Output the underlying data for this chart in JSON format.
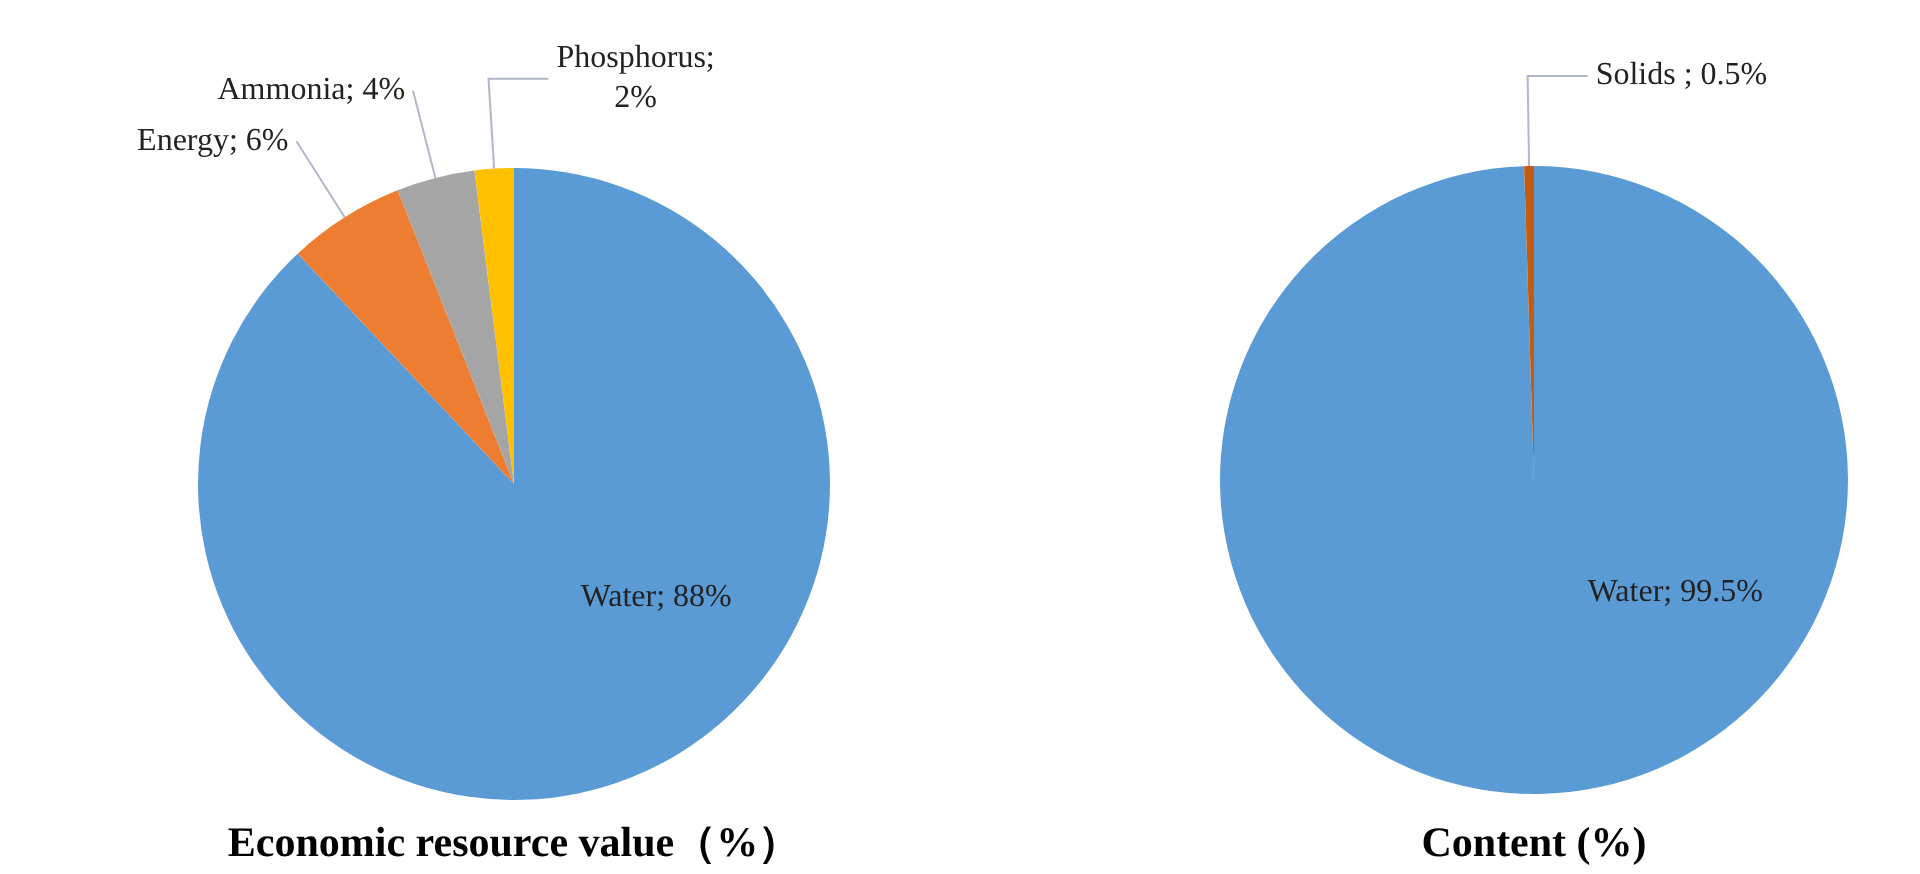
{
  "chart_data": [
    {
      "type": "pie",
      "title": "Economic resource value（%）",
      "categories": [
        "Water",
        "Energy",
        "Ammonia",
        "Phosphorus"
      ],
      "values": [
        88,
        6,
        4,
        2
      ],
      "colors": [
        "#5b9bd5",
        "#ed7d31",
        "#a5a5a5",
        "#ffc000"
      ],
      "value_labels": [
        "; 88%",
        "; 6%",
        "; 4%",
        "; 2%"
      ]
    },
    {
      "type": "pie",
      "title": "Content (%)",
      "categories": [
        "Water",
        "Solids "
      ],
      "values": [
        99.5,
        0.5
      ],
      "colors": [
        "#5b9bd5",
        "#c55a11"
      ],
      "value_labels": [
        "; 99.5%",
        "; 0.5%"
      ]
    }
  ]
}
